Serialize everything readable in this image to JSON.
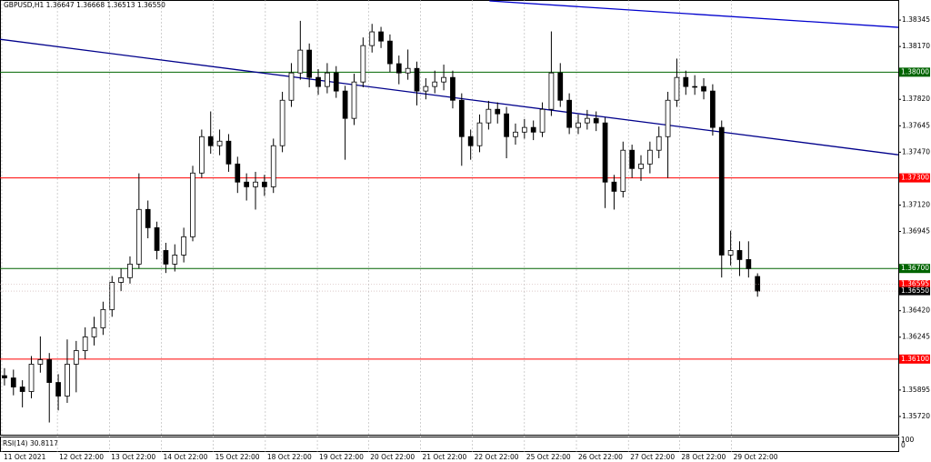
{
  "chart_data": {
    "type": "candlestick",
    "legend_text": "GBPUSD,H1  1.36647 1.36668 1.36513 1.36550",
    "open": [
      1.3599,
      1.35975,
      1.35915,
      1.35885,
      1.36066,
      1.36096,
      1.35945,
      1.35855,
      1.36066,
      1.36156,
      1.36247,
      1.36307,
      1.36428,
      1.36608,
      1.36639,
      1.36729,
      1.37091,
      1.3697,
      1.36819,
      1.36729,
      1.36789,
      1.3691,
      1.37332,
      1.37573,
      1.37513,
      1.37543,
      1.37392,
      1.37272,
      1.37241,
      1.37272,
      1.37241,
      1.37513,
      1.37814,
      1.37995,
      1.38146,
      1.37965,
      1.37905,
      1.37995,
      1.37875,
      1.37694,
      1.37935,
      1.38176,
      1.38267,
      1.38206,
      1.38056,
      1.37995,
      1.38025,
      1.37875,
      1.37905,
      1.37935,
      1.37965,
      1.37814,
      1.37573,
      1.37513,
      1.37664,
      1.37754,
      1.37724,
      1.37573,
      1.37603,
      1.37634,
      1.37603,
      1.37754,
      1.37995,
      1.37814,
      1.37634,
      1.37664,
      1.37694,
      1.37664,
      1.37272,
      1.37211,
      1.37483,
      1.37362,
      1.37392,
      1.37483,
      1.37573,
      1.37814,
      1.37965,
      1.37905,
      1.37905,
      1.37875,
      1.37634,
      1.36789,
      1.36819,
      1.36759,
      1.36647
    ],
    "high": [
      1.3604,
      1.3603,
      1.3596,
      1.3612,
      1.3625,
      1.3614,
      1.36,
      1.3623,
      1.3622,
      1.3631,
      1.3638,
      1.3648,
      1.3665,
      1.367,
      1.3678,
      1.3733,
      1.3715,
      1.3701,
      1.3687,
      1.3686,
      1.3697,
      1.3738,
      1.3762,
      1.3774,
      1.3762,
      1.3759,
      1.3744,
      1.3733,
      1.3734,
      1.3732,
      1.3756,
      1.3787,
      1.3806,
      1.3834,
      1.3819,
      1.3802,
      1.3806,
      1.3804,
      1.3791,
      1.3799,
      1.3823,
      1.3832,
      1.383,
      1.3825,
      1.3811,
      1.3815,
      1.3807,
      1.3796,
      1.3801,
      1.3805,
      1.3801,
      1.3786,
      1.3762,
      1.3772,
      1.3781,
      1.378,
      1.3777,
      1.3766,
      1.3769,
      1.3768,
      1.378,
      1.3827,
      1.3806,
      1.3786,
      1.3772,
      1.3775,
      1.3774,
      1.377,
      1.3732,
      1.3754,
      1.3752,
      1.3745,
      1.3754,
      1.3764,
      1.3787,
      1.3809,
      1.3801,
      1.3798,
      1.3796,
      1.3792,
      1.3768,
      1.3695,
      1.3688,
      1.3688,
      1.36668
    ],
    "low": [
      1.35925,
      1.3586,
      1.3578,
      1.3584,
      1.3601,
      1.3568,
      1.3576,
      1.3581,
      1.3588,
      1.361,
      1.3619,
      1.3626,
      1.3638,
      1.3655,
      1.366,
      1.367,
      1.369,
      1.3676,
      1.3667,
      1.3668,
      1.3674,
      1.3688,
      1.373,
      1.3746,
      1.3745,
      1.3734,
      1.372,
      1.3715,
      1.3709,
      1.3718,
      1.372,
      1.3747,
      1.3777,
      1.3795,
      1.379,
      1.3785,
      1.3786,
      1.3783,
      1.3742,
      1.3765,
      1.379,
      1.3813,
      1.3816,
      1.38,
      1.3792,
      1.3795,
      1.3778,
      1.3782,
      1.3786,
      1.3788,
      1.3776,
      1.3738,
      1.3742,
      1.3747,
      1.3762,
      1.3766,
      1.3743,
      1.3752,
      1.3756,
      1.3755,
      1.3757,
      1.3771,
      1.3777,
      1.3759,
      1.3759,
      1.3762,
      1.3761,
      1.371,
      1.3709,
      1.3717,
      1.373,
      1.3728,
      1.3733,
      1.3743,
      1.373,
      1.3777,
      1.3785,
      1.3785,
      1.3782,
      1.3758,
      1.3664,
      1.3672,
      1.3665,
      1.3664,
      1.36513
    ],
    "close": [
      1.35975,
      1.35915,
      1.35885,
      1.36066,
      1.36096,
      1.35945,
      1.35855,
      1.36066,
      1.36156,
      1.36247,
      1.36307,
      1.36428,
      1.36608,
      1.36639,
      1.36729,
      1.37091,
      1.3697,
      1.36819,
      1.36729,
      1.36789,
      1.3691,
      1.37332,
      1.37573,
      1.37513,
      1.37543,
      1.37392,
      1.37272,
      1.37241,
      1.37272,
      1.37241,
      1.37513,
      1.37814,
      1.37995,
      1.38146,
      1.37965,
      1.37905,
      1.37995,
      1.37875,
      1.37694,
      1.37935,
      1.38176,
      1.38267,
      1.38206,
      1.38056,
      1.37995,
      1.38025,
      1.37875,
      1.37905,
      1.37935,
      1.37965,
      1.37814,
      1.37573,
      1.37513,
      1.37664,
      1.37754,
      1.37724,
      1.37573,
      1.37603,
      1.37634,
      1.37603,
      1.37754,
      1.37995,
      1.37814,
      1.37634,
      1.37664,
      1.37694,
      1.37664,
      1.37272,
      1.37211,
      1.37483,
      1.37362,
      1.37392,
      1.37483,
      1.37573,
      1.37814,
      1.37965,
      1.37905,
      1.37905,
      1.37875,
      1.37634,
      1.36789,
      1.36819,
      1.36759,
      1.36699,
      1.3655
    ],
    "xlim": [
      -0.5,
      99.7
    ],
    "xticks": [
      {
        "value": -0.3,
        "label": "11 Oct 2021"
      },
      {
        "value": 5.9,
        "label": "12 Oct 22:00"
      },
      {
        "value": 11.7,
        "label": "13 Oct 22:00"
      },
      {
        "value": 17.5,
        "label": "14 Oct 22:00"
      },
      {
        "value": 23.3,
        "label": "15 Oct 22:00"
      },
      {
        "value": 29.1,
        "label": "18 Oct 22:00"
      },
      {
        "value": 34.9,
        "label": "19 Oct 22:00"
      },
      {
        "value": 40.6,
        "label": "20 Oct 22:00"
      },
      {
        "value": 46.4,
        "label": "21 Oct 22:00"
      },
      {
        "value": 52.2,
        "label": "22 Oct 22:00"
      },
      {
        "value": 58.0,
        "label": "25 Oct 22:00"
      },
      {
        "value": 63.8,
        "label": "26 Oct 22:00"
      },
      {
        "value": 69.6,
        "label": "27 Oct 22:00"
      },
      {
        "value": 75.3,
        "label": "28 Oct 22:00"
      },
      {
        "value": 81.1,
        "label": "29 Oct 22:00"
      }
    ],
    "ylim": [
      1.35599,
      1.38478
    ],
    "yticks": [
      {
        "value": 1.38345,
        "label": "1.38345"
      },
      {
        "value": 1.3817,
        "label": "1.38170"
      },
      {
        "value": 1.3782,
        "label": "1.37820"
      },
      {
        "value": 1.37645,
        "label": "1.37645"
      },
      {
        "value": 1.3747,
        "label": "1.37470"
      },
      {
        "value": 1.3712,
        "label": "1.37120"
      },
      {
        "value": 1.36945,
        "label": "1.36945"
      },
      {
        "value": 1.3642,
        "label": "1.36420"
      },
      {
        "value": 1.36245,
        "label": "1.36245"
      },
      {
        "value": 1.35895,
        "label": "1.35895"
      },
      {
        "value": 1.3572,
        "label": "1.35720"
      }
    ],
    "grid": true,
    "levels": [
      {
        "value": 1.38,
        "label": "1.38000",
        "color": "#006400"
      },
      {
        "value": 1.373,
        "label": "1.37300",
        "color": "#ff0000"
      },
      {
        "value": 1.367,
        "label": "1.36700",
        "color": "#006400"
      },
      {
        "value": 1.361,
        "label": "1.36100",
        "color": "#ff0000"
      }
    ],
    "price_labels": [
      {
        "value": 1.36595,
        "label": "1.36595",
        "color": "#ff0000"
      },
      {
        "value": 1.3655,
        "label": "1.36550",
        "color": "#000000"
      }
    ],
    "trendlines": [
      {
        "x": [
          -0.5,
          99.7
        ],
        "y": [
          1.38218,
          1.37453
        ],
        "color": "#00008b"
      },
      {
        "x": [
          54.1,
          99.7
        ],
        "y": [
          1.38472,
          1.38297
        ],
        "color": "#0000cd"
      }
    ],
    "rsi": {
      "label": "RSI(14) 30.8117",
      "yticks": [
        100,
        0
      ]
    }
  }
}
